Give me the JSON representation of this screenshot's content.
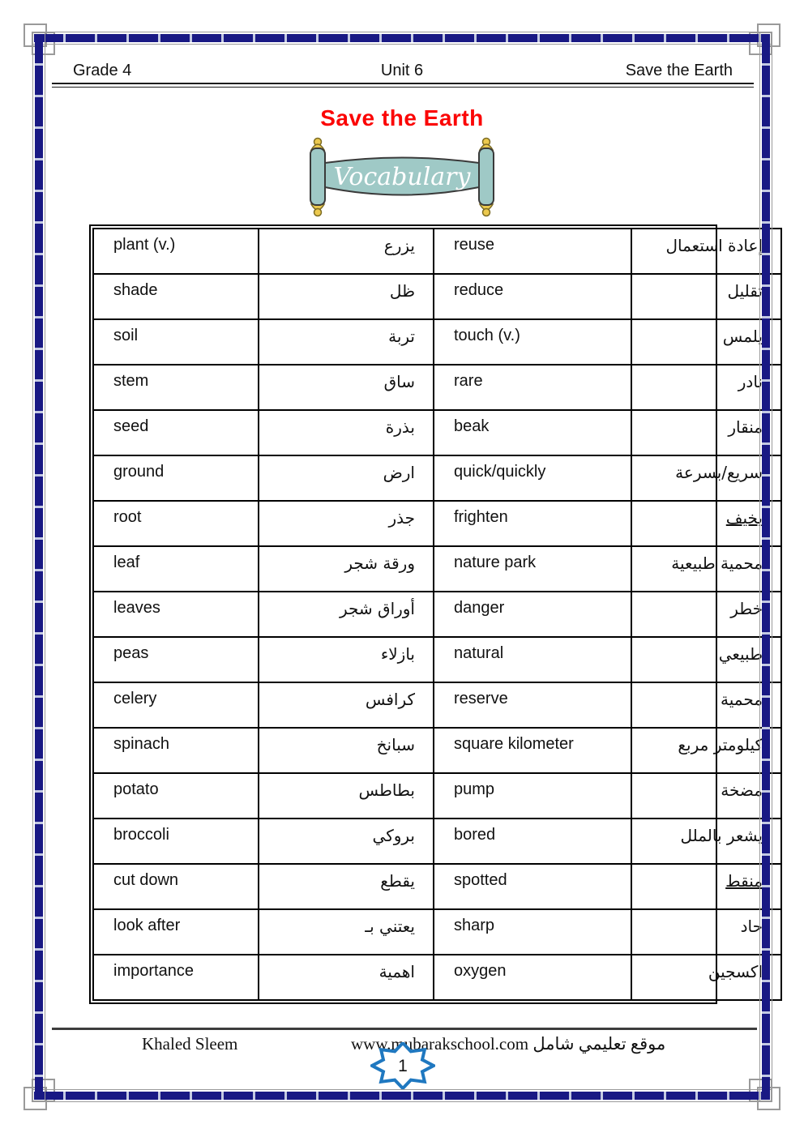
{
  "header": {
    "left": "Grade 4",
    "center": "Unit 6",
    "right": "Save the Earth"
  },
  "title": "Save the Earth",
  "banner": {
    "label": "Vocabulary"
  },
  "vocab": {
    "rows": [
      {
        "en_left": "plant (v.)",
        "ar_left": "يزرع",
        "en_right": "reuse",
        "ar_right": "إعادة استعمال"
      },
      {
        "en_left": "shade",
        "ar_left": "ظل",
        "en_right": "reduce",
        "ar_right": "تقليل"
      },
      {
        "en_left": "soil",
        "ar_left": "تربة",
        "en_right": "touch (v.)",
        "ar_right": "يلمس"
      },
      {
        "en_left": "stem",
        "ar_left": "ساق",
        "en_right": "rare",
        "ar_right": "نادر"
      },
      {
        "en_left": "seed",
        "ar_left": "بذرة",
        "en_right": "beak",
        "ar_right": "منقار"
      },
      {
        "en_left": "ground",
        "ar_left": "ارض",
        "en_right": "quick/quickly",
        "ar_right": "سريع/بسرعة"
      },
      {
        "en_left": "root",
        "ar_left": "جذر",
        "en_right": "frighten",
        "ar_right": "يخيف",
        "ar_right_underlined": true
      },
      {
        "en_left": "leaf",
        "ar_left": "ورقة شجر",
        "en_right": "nature park",
        "ar_right": "محمية طبيعية"
      },
      {
        "en_left": "leaves",
        "ar_left": "أوراق شجر",
        "en_right": "danger",
        "ar_right": "خطر"
      },
      {
        "en_left": "peas",
        "ar_left": "بازلاء",
        "en_right": "natural",
        "ar_right": "طبيعي"
      },
      {
        "en_left": "celery",
        "ar_left": "كرافس",
        "en_right": "reserve",
        "ar_right": "محمية"
      },
      {
        "en_left": "spinach",
        "ar_left": "سبانخ",
        "en_right": "square kilometer",
        "ar_right": "كيلومتر مربع"
      },
      {
        "en_left": "potato",
        "ar_left": "بطاطس",
        "en_right": "pump",
        "ar_right": "مضخة"
      },
      {
        "en_left": "broccoli",
        "ar_left": "بروكي",
        "en_right": "bored",
        "ar_right": "يشعر بالملل"
      },
      {
        "en_left": "cut down",
        "ar_left": "يقطع",
        "en_right": "spotted",
        "ar_right": "منقط",
        "ar_right_underlined": true
      },
      {
        "en_left": "look after",
        "ar_left": "يعتني بـ",
        "en_right": "sharp",
        "ar_right": "حاد"
      },
      {
        "en_left": "importance",
        "ar_left": "اهمية",
        "en_right": "oxygen",
        "ar_right": "اكسجين"
      }
    ]
  },
  "footer": {
    "author": "Khaled Sleem",
    "site": "www.mubarakschool.com موقع تعليمي شامل",
    "page_number": "1"
  },
  "colors": {
    "border_navy": "#191984",
    "title_red": "#fb0505",
    "banner_teal": "#9fc9c6",
    "finial_gold": "#ecc94e",
    "star_blue": "#1f78c0"
  }
}
